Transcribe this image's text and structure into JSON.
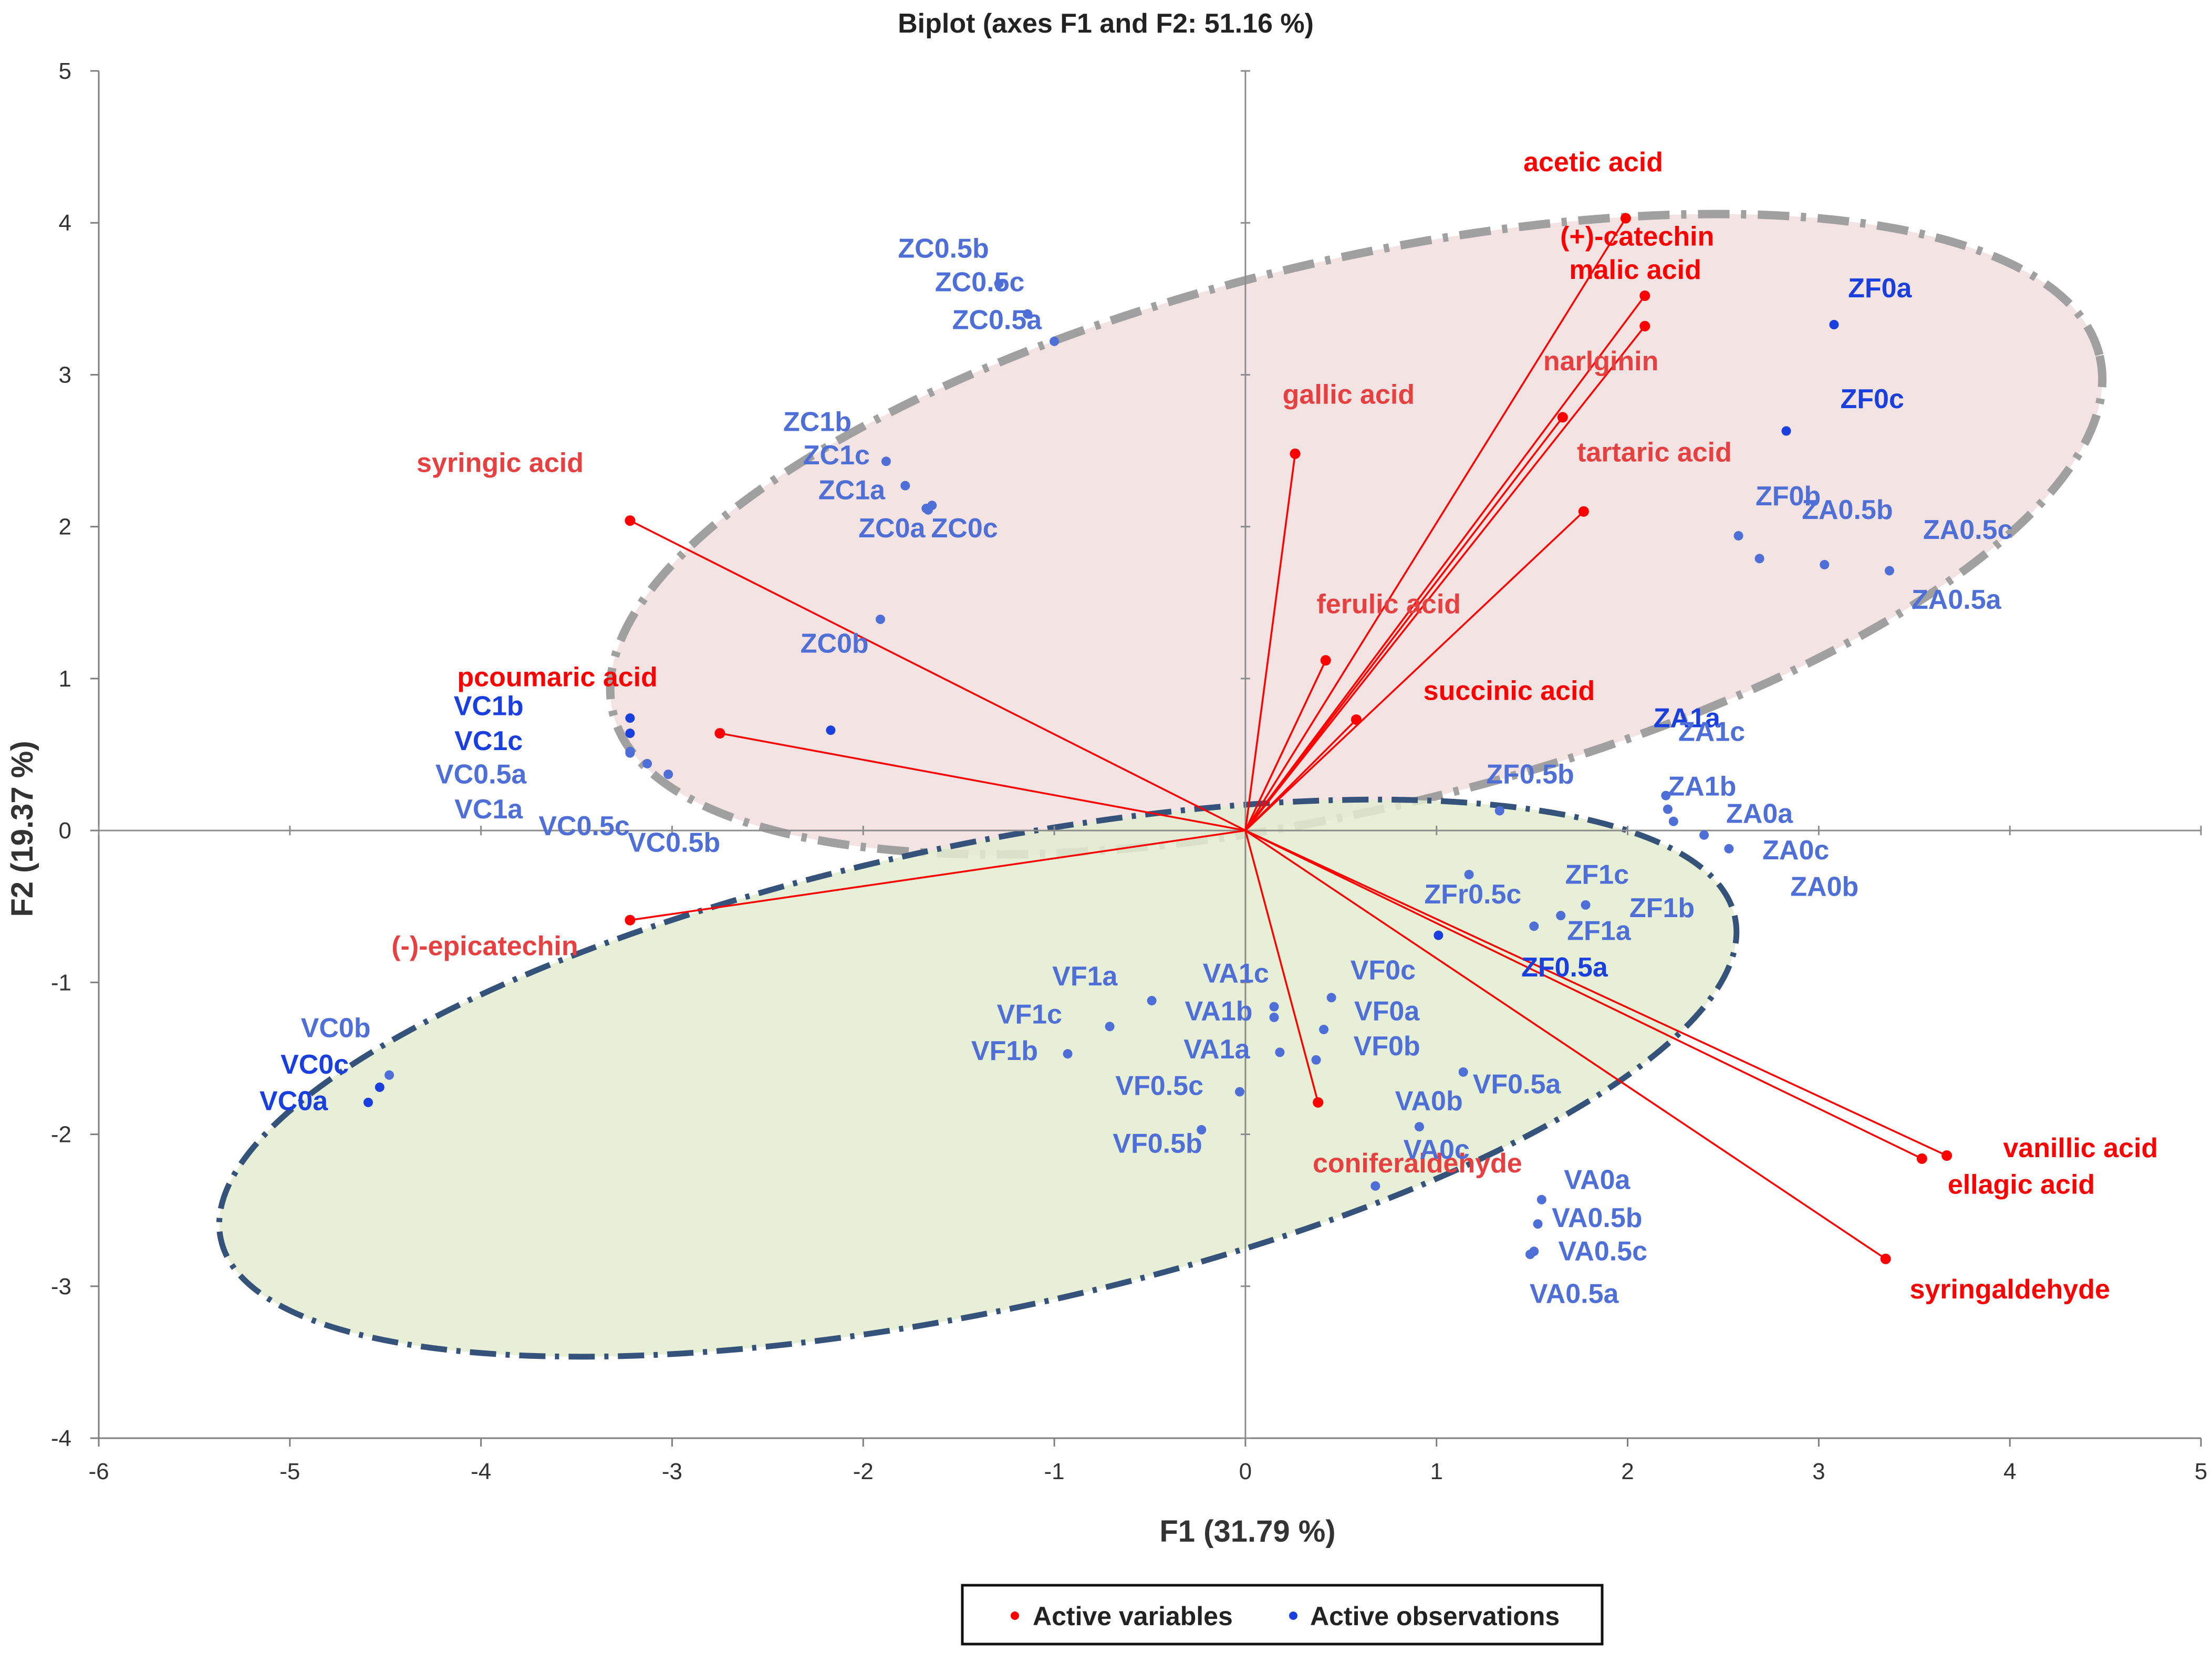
{
  "chart_data": {
    "type": "scatter",
    "title": "Biplot (axes F1 and F2: 51.16 %)",
    "xlabel": "F1 (31.79 %)",
    "ylabel": "F2 (19.37 %)",
    "xlim": [
      -6,
      5
    ],
    "ylim": [
      -4,
      5
    ],
    "x_ticks": [
      "-6",
      "-5",
      "-4",
      "-3",
      "-2",
      "-1",
      "0",
      "1",
      "2",
      "3",
      "4",
      "5"
    ],
    "y_ticks": [
      "-4",
      "-3",
      "-2",
      "-1",
      "0",
      "1",
      "2",
      "3",
      "4",
      "5"
    ],
    "legend": [
      "Active variables",
      "Active observations"
    ],
    "colors": {
      "variables": "#ff0000",
      "observations": "#1a3fe0",
      "obs_light": "#4f6fd8",
      "var_light": "#e84040",
      "cluster_z_fill": "#f2dede",
      "cluster_z_stroke": "#a0a0a0",
      "cluster_v_fill": "#e3ecd0",
      "cluster_v_stroke": "#35537a"
    },
    "clusters": [
      {
        "name": "Z",
        "cx": 0.58,
        "cy": 1.95,
        "rx": 4.0,
        "ry": 1.8,
        "angle_deg": -13.5
      },
      {
        "name": "V",
        "cx": -1.4,
        "cy": -1.63,
        "rx": 4.05,
        "ry": 1.53,
        "angle_deg": -12
      }
    ],
    "variables": [
      {
        "name": "acetic acid",
        "x": 1.99,
        "y": 4.03,
        "lx": 1.82,
        "ly": 4.34
      },
      {
        "name": "(+)-catechin",
        "x": 2.09,
        "y": 3.52,
        "lx": 2.05,
        "ly": 3.85
      },
      {
        "name": "malic acid",
        "x": 2.09,
        "y": 3.32,
        "lx": 2.04,
        "ly": 3.63
      },
      {
        "name": "narlginin",
        "x": 1.66,
        "y": 2.72,
        "lx": 1.86,
        "ly": 3.03
      },
      {
        "name": "gallic acid",
        "x": 0.26,
        "y": 2.48,
        "lx": 0.54,
        "ly": 2.81
      },
      {
        "name": "tartaric acid",
        "x": 1.77,
        "y": 2.1,
        "lx": 2.14,
        "ly": 2.43
      },
      {
        "name": "syringic acid",
        "x": -3.22,
        "y": 2.04,
        "lx": -3.9,
        "ly": 2.36
      },
      {
        "name": "ferulic acid",
        "x": 0.42,
        "y": 1.12,
        "lx": 0.75,
        "ly": 1.43
      },
      {
        "name": "succinic acid",
        "x": 0.58,
        "y": 0.73,
        "lx": 1.38,
        "ly": 0.86
      },
      {
        "name": "pcoumaric acid",
        "x": -2.75,
        "y": 0.64,
        "lx": -3.6,
        "ly": 0.95
      },
      {
        "name": "(-)-epicatechin",
        "x": -3.22,
        "y": -0.59,
        "lx": -3.98,
        "ly": -0.82
      },
      {
        "name": "coniferaldehyde",
        "x": 0.38,
        "y": -1.79,
        "lx": 0.9,
        "ly": -2.25
      },
      {
        "name": "vanillic acid",
        "x": 3.67,
        "y": -2.14,
        "lx": 4.37,
        "ly": -2.15
      },
      {
        "name": "ellagic acid",
        "x": 3.54,
        "y": -2.16,
        "lx": 4.06,
        "ly": -2.39
      },
      {
        "name": "syringaldehyde",
        "x": 3.35,
        "y": -2.82,
        "lx": 4.0,
        "ly": -3.08
      }
    ],
    "observations": [
      {
        "name": "ZC0.5b",
        "x": -1.29,
        "y": 3.6,
        "lx": -1.58,
        "ly": 3.77,
        "dark": false
      },
      {
        "name": "ZC0.5c",
        "x": -1.14,
        "y": 3.4,
        "lx": -1.39,
        "ly": 3.55,
        "dark": false
      },
      {
        "name": "ZC0.5a",
        "x": -1.0,
        "y": 3.22,
        "lx": -1.3,
        "ly": 3.3,
        "dark": false
      },
      {
        "name": "ZC1b",
        "x": -1.88,
        "y": 2.43,
        "lx": -2.24,
        "ly": 2.63,
        "dark": false
      },
      {
        "name": "ZC1c",
        "x": -1.78,
        "y": 2.27,
        "lx": -2.14,
        "ly": 2.41,
        "dark": false
      },
      {
        "name": "ZC1a",
        "x": -1.67,
        "y": 2.12,
        "lx": -2.06,
        "ly": 2.18,
        "dark": false
      },
      {
        "name": "ZC0a",
        "x": -1.64,
        "y": 2.14,
        "lx": -1.85,
        "ly": 1.93,
        "dark": false
      },
      {
        "name": "ZC0c",
        "x": -1.66,
        "y": 2.11,
        "lx": -1.47,
        "ly": 1.93,
        "dark": false
      },
      {
        "name": "ZC0b",
        "x": -1.91,
        "y": 1.39,
        "lx": -2.15,
        "ly": 1.17,
        "dark": false
      },
      {
        "name": "ZF0a",
        "x": 3.08,
        "y": 3.33,
        "lx": 3.32,
        "ly": 3.51,
        "dark": true
      },
      {
        "name": "ZF0c",
        "x": 2.83,
        "y": 2.63,
        "lx": 3.28,
        "ly": 2.78,
        "dark": true
      },
      {
        "name": "ZF0b",
        "x": 2.58,
        "y": 1.94,
        "lx": 2.84,
        "ly": 2.14,
        "dark": false
      },
      {
        "name": "ZA0.5b",
        "x": 2.69,
        "y": 1.79,
        "lx": 3.15,
        "ly": 2.05,
        "dark": false
      },
      {
        "name": "ZA0.5c",
        "x": 3.03,
        "y": 1.75,
        "lx": 3.78,
        "ly": 1.92,
        "dark": false
      },
      {
        "name": "ZA0.5a",
        "x": 3.37,
        "y": 1.71,
        "lx": 3.72,
        "ly": 1.46,
        "dark": false
      },
      {
        "name": "ZA1a",
        "x": -2.17,
        "y": 0.66,
        "lx": 2.31,
        "ly": 0.68,
        "dark": true
      },
      {
        "name": "ZA1c",
        "x": 2.21,
        "y": 0.14,
        "lx": 2.44,
        "ly": 0.59,
        "dark": false
      },
      {
        "name": "ZA1b",
        "x": 2.2,
        "y": 0.23,
        "lx": 2.39,
        "ly": 0.23,
        "dark": false
      },
      {
        "name": "ZA0a",
        "x": 2.24,
        "y": 0.06,
        "lx": 2.69,
        "ly": 0.05,
        "dark": false
      },
      {
        "name": "ZA0c",
        "x": 2.4,
        "y": -0.03,
        "lx": 2.88,
        "ly": -0.19,
        "dark": false
      },
      {
        "name": "ZA0b",
        "x": 2.53,
        "y": -0.12,
        "lx": 3.03,
        "ly": -0.43,
        "dark": false
      },
      {
        "name": "ZF0.5b",
        "x": 1.33,
        "y": 0.13,
        "lx": 1.49,
        "ly": 0.31,
        "dark": false
      },
      {
        "name": "ZFr0.5c",
        "x": 1.17,
        "y": -0.29,
        "lx": 1.19,
        "ly": -0.48,
        "dark": false
      },
      {
        "name": "ZF1c",
        "x": 1.78,
        "y": -0.49,
        "lx": 1.84,
        "ly": -0.35,
        "dark": false
      },
      {
        "name": "ZF1b",
        "x": 1.65,
        "y": -0.56,
        "lx": 2.18,
        "ly": -0.57,
        "dark": false
      },
      {
        "name": "ZF1a",
        "x": 1.51,
        "y": -0.63,
        "lx": 1.85,
        "ly": -0.72,
        "dark": false
      },
      {
        "name": "ZF0.5a",
        "x": 1.01,
        "y": -0.69,
        "lx": 1.67,
        "ly": -0.96,
        "dark": true
      },
      {
        "name": "VC1b",
        "x": -3.22,
        "y": 0.74,
        "lx": -3.96,
        "ly": 0.76,
        "dark": true
      },
      {
        "name": "VC1c",
        "x": -3.22,
        "y": 0.64,
        "lx": -3.96,
        "ly": 0.53,
        "dark": true
      },
      {
        "name": "VC0.5a",
        "x": -3.22,
        "y": 0.52,
        "lx": -4.0,
        "ly": 0.31,
        "dark": false
      },
      {
        "name": "VC1a",
        "x": -3.13,
        "y": 0.44,
        "lx": -3.96,
        "ly": 0.08,
        "dark": false
      },
      {
        "name": "VC0.5c",
        "x": -3.02,
        "y": 0.37,
        "lx": -3.46,
        "ly": -0.03,
        "dark": false
      },
      {
        "name": "VC0.5b",
        "x": -3.22,
        "y": 0.51,
        "lx": -2.99,
        "ly": -0.14,
        "dark": false
      },
      {
        "name": "VC0b",
        "x": -4.48,
        "y": -1.61,
        "lx": -4.76,
        "ly": -1.36,
        "dark": false
      },
      {
        "name": "VC0c",
        "x": -4.53,
        "y": -1.69,
        "lx": -4.87,
        "ly": -1.6,
        "dark": true
      },
      {
        "name": "VC0a",
        "x": -4.59,
        "y": -1.79,
        "lx": -4.98,
        "ly": -1.84,
        "dark": true
      },
      {
        "name": "VF1a",
        "x": -0.49,
        "y": -1.12,
        "lx": -0.84,
        "ly": -1.02,
        "dark": false
      },
      {
        "name": "VF1c",
        "x": -0.71,
        "y": -1.29,
        "lx": -1.13,
        "ly": -1.27,
        "dark": false
      },
      {
        "name": "VF1b",
        "x": -0.93,
        "y": -1.47,
        "lx": -1.26,
        "ly": -1.51,
        "dark": false
      },
      {
        "name": "VA1c",
        "x": 0.15,
        "y": -1.16,
        "lx": -0.05,
        "ly": -1.0,
        "dark": false
      },
      {
        "name": "VA1b",
        "x": 0.15,
        "y": -1.23,
        "lx": -0.14,
        "ly": -1.25,
        "dark": false
      },
      {
        "name": "VA1a",
        "x": 0.18,
        "y": -1.46,
        "lx": -0.15,
        "ly": -1.5,
        "dark": false
      },
      {
        "name": "VF0c",
        "x": 0.45,
        "y": -1.1,
        "lx": 0.72,
        "ly": -0.98,
        "dark": false
      },
      {
        "name": "VF0a",
        "x": 0.41,
        "y": -1.31,
        "lx": 0.74,
        "ly": -1.25,
        "dark": false
      },
      {
        "name": "VF0b",
        "x": 0.37,
        "y": -1.51,
        "lx": 0.74,
        "ly": -1.48,
        "dark": false
      },
      {
        "name": "VF0.5c",
        "x": -0.03,
        "y": -1.72,
        "lx": -0.45,
        "ly": -1.74,
        "dark": false
      },
      {
        "name": "VF0.5b",
        "x": -0.23,
        "y": -1.97,
        "lx": -0.46,
        "ly": -2.12,
        "dark": false
      },
      {
        "name": "VF0.5a",
        "x": 1.14,
        "y": -1.59,
        "lx": 1.42,
        "ly": -1.73,
        "dark": false
      },
      {
        "name": "VA0b",
        "x": 0.91,
        "y": -1.95,
        "lx": 0.96,
        "ly": -1.84,
        "dark": false
      },
      {
        "name": "VA0c",
        "x": 0.68,
        "y": -2.34,
        "lx": 1.0,
        "ly": -2.16,
        "dark": false
      },
      {
        "name": "VA0a",
        "x": 1.55,
        "y": -2.43,
        "lx": 1.84,
        "ly": -2.36,
        "dark": false
      },
      {
        "name": "VA0.5b",
        "x": 1.53,
        "y": -2.59,
        "lx": 1.84,
        "ly": -2.61,
        "dark": false
      },
      {
        "name": "VA0.5c",
        "x": 1.51,
        "y": -2.77,
        "lx": 1.87,
        "ly": -2.83,
        "dark": false
      },
      {
        "name": "VA0.5a",
        "x": 1.49,
        "y": -2.79,
        "lx": 1.72,
        "ly": -3.11,
        "dark": false
      }
    ]
  }
}
